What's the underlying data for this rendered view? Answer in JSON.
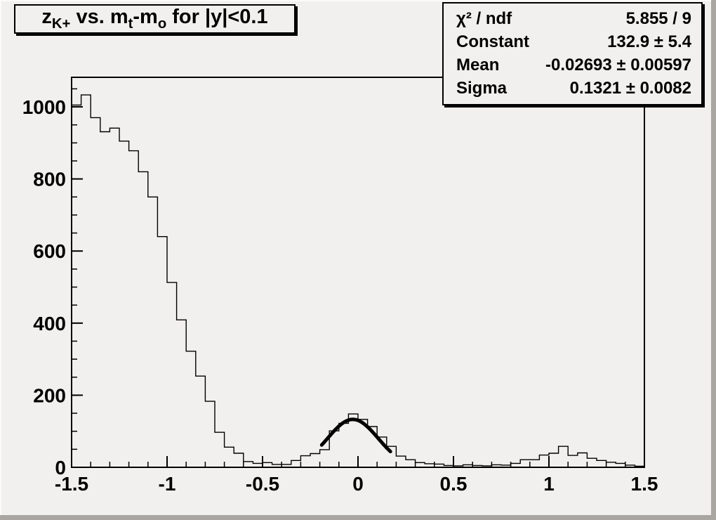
{
  "title": {
    "plain": "z_{K+} vs. m_t-m_o for |y|<0.1",
    "segments": [
      {
        "text": "z"
      },
      {
        "text": "K+",
        "sub": true
      },
      {
        "text": " vs. m"
      },
      {
        "text": "t",
        "sub": true
      },
      {
        "text": "-m"
      },
      {
        "text": "o",
        "sub": true
      },
      {
        "text": " for |y|<0.1"
      }
    ]
  },
  "stats": {
    "rows": [
      {
        "label": "χ² / ndf",
        "value": "5.855 / 9"
      },
      {
        "label": "Constant",
        "value": "132.9 ± 5.4"
      },
      {
        "label": "Mean",
        "value": "-0.02693 ± 0.00597"
      },
      {
        "label": "Sigma",
        "value": "0.1321 ± 0.0082"
      }
    ]
  },
  "colors": {
    "background": "#f2f0ee",
    "line": "#000000",
    "text": "#000000",
    "bevel": "#a9a5a0"
  },
  "chart_data": {
    "type": "bar",
    "style": "step-histogram",
    "title": "z_{K+} vs. m_t-m_o for |y|<0.1",
    "xlabel": "",
    "ylabel": "",
    "xlim": [
      -1.5,
      1.5
    ],
    "ylim": [
      0,
      1082
    ],
    "grid": false,
    "x_start": -1.5,
    "bin_width": 0.05,
    "values": [
      1005,
      1033,
      970,
      931,
      941,
      905,
      878,
      820,
      750,
      640,
      513,
      409,
      322,
      253,
      183,
      97,
      56,
      39,
      16,
      11,
      13,
      8,
      8,
      19,
      32,
      38,
      49,
      101,
      122,
      148,
      133,
      113,
      84,
      58,
      31,
      21,
      13,
      10,
      9,
      5,
      4,
      7,
      5,
      4,
      7,
      6,
      11,
      21,
      21,
      34,
      39,
      58,
      33,
      40,
      25,
      19,
      14,
      11,
      6,
      3
    ],
    "x_major_ticks": [
      -1.5,
      -1,
      -0.5,
      0,
      0.5,
      1,
      1.5
    ],
    "x_tick_labels": [
      "-1.5",
      "-1",
      "-0.5",
      "0",
      "0.5",
      "1",
      "1.5"
    ],
    "x_minor_step": 0.1,
    "y_major_ticks": [
      0,
      200,
      400,
      600,
      800,
      1000
    ],
    "y_tick_labels": [
      "0",
      "200",
      "400",
      "600",
      "800",
      "1000"
    ],
    "y_minor_step": 50,
    "fit": {
      "model": "gaussian",
      "chi2": 5.855,
      "ndf": 9,
      "constant": 132.9,
      "constant_err": 5.4,
      "mean": -0.02693,
      "mean_err": 0.00597,
      "sigma": 0.1321,
      "sigma_err": 0.0082,
      "draw_range": [
        -0.19,
        0.17
      ]
    }
  }
}
